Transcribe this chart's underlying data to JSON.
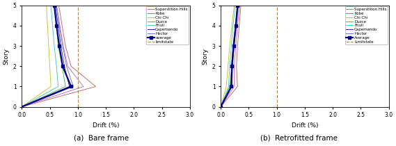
{
  "stories": [
    0,
    1,
    2,
    3,
    4,
    5
  ],
  "bare_frame": {
    "superstition_hills": [
      0,
      0.78,
      0.72,
      0.65,
      0.62,
      0.58
    ],
    "kobe": [
      0,
      1.32,
      0.88,
      0.78,
      0.72,
      0.66
    ],
    "chi_chi": [
      0,
      0.52,
      0.5,
      0.48,
      0.46,
      0.44
    ],
    "duzce": [
      0,
      1.1,
      0.82,
      0.74,
      0.68,
      0.62
    ],
    "friuli": [
      0,
      0.65,
      0.62,
      0.58,
      0.55,
      0.52
    ],
    "capemendo": [
      0,
      0.85,
      0.76,
      0.7,
      0.65,
      0.6
    ],
    "hector": [
      0,
      0.92,
      0.8,
      0.73,
      0.67,
      0.62
    ],
    "average": [
      0,
      0.88,
      0.73,
      0.67,
      0.62,
      0.58
    ]
  },
  "retrofitted_frame": {
    "superstition_hills": [
      0,
      0.16,
      0.2,
      0.24,
      0.28,
      0.32
    ],
    "kobe": [
      0,
      0.3,
      0.28,
      0.3,
      0.33,
      0.36
    ],
    "chi_chi": [
      0,
      0.1,
      0.13,
      0.16,
      0.2,
      0.24
    ],
    "duzce": [
      0,
      0.24,
      0.24,
      0.27,
      0.3,
      0.34
    ],
    "friuli": [
      0,
      0.14,
      0.16,
      0.19,
      0.22,
      0.26
    ],
    "capemendo": [
      0,
      0.2,
      0.21,
      0.24,
      0.27,
      0.31
    ],
    "hector": [
      0,
      0.18,
      0.19,
      0.22,
      0.26,
      0.3
    ],
    "average": [
      0,
      0.19,
      0.2,
      0.23,
      0.27,
      0.3
    ]
  },
  "colors": {
    "superstition_hills": "#5cb85c",
    "kobe": "#c07070",
    "chi_chi": "#c8c832",
    "duzce": "#c870c8",
    "friuli": "#50c8c8",
    "capemendo": "#3535a0",
    "hector": "#7878c0",
    "average": "#00008B",
    "limitstate": "#a89050"
  },
  "limitstate_x": 1.0,
  "xlim": [
    0,
    3
  ],
  "ylim": [
    0,
    5
  ],
  "xticks": [
    0,
    0.5,
    1,
    1.5,
    2,
    2.5,
    3
  ],
  "yticks": [
    0,
    1,
    2,
    3,
    4,
    5
  ],
  "xlabel": "Drift (%)",
  "ylabel": "Story",
  "caption_a": "(a)  Bare frame",
  "caption_b": "(b)  Retrofitted frame",
  "legend_labels_a": [
    "Superstition Hills",
    "Kobe",
    "Chi Chi",
    "Duzce",
    "Friuli",
    "Capemendo",
    "Hector",
    "average",
    "limitstate"
  ],
  "legend_labels_b": [
    "Superstition Hills",
    "Kobe",
    "Chi Chi",
    "Duzce",
    "Friuli",
    "Capemendo",
    "Hector",
    "Average",
    "Limitstate"
  ]
}
